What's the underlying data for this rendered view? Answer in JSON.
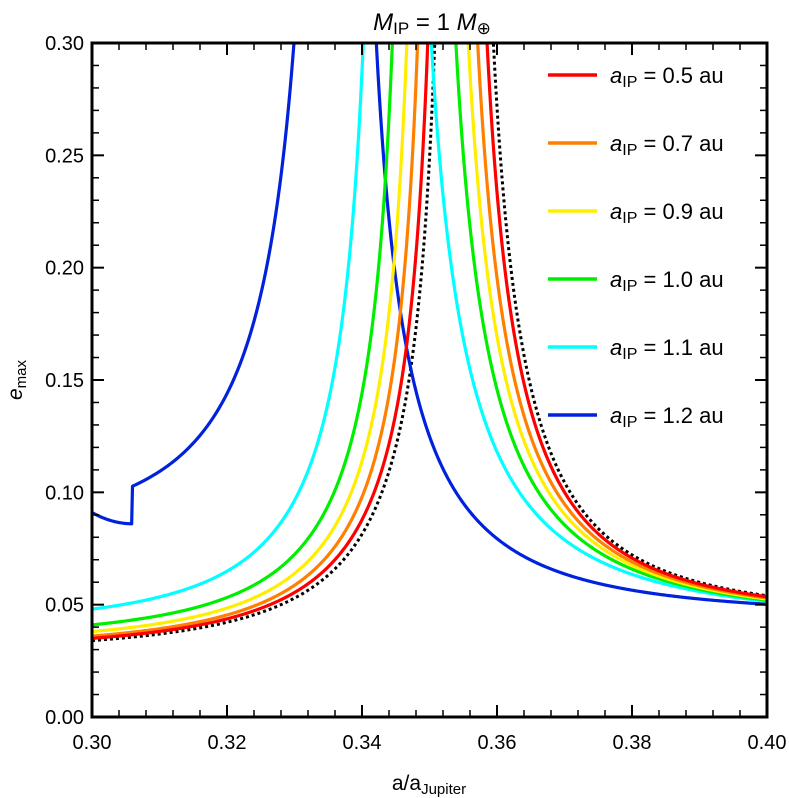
{
  "chart_data": {
    "type": "line",
    "title": {
      "M": "M",
      "sub": "IP",
      "eq": " = 1 ",
      "M2": "M",
      "sub2": "⊕"
    },
    "xlabel": {
      "main": "a/a",
      "sub": "Jupiter"
    },
    "ylabel": {
      "main": "e",
      "sub": "max"
    },
    "xlim": [
      0.3,
      0.4
    ],
    "ylim": [
      0.0,
      0.3
    ],
    "xticks": [
      "0.30",
      "0.32",
      "0.34",
      "0.36",
      "0.38",
      "0.40"
    ],
    "yticks": [
      "0.00",
      "0.05",
      "0.10",
      "0.15",
      "0.20",
      "0.25",
      "0.30"
    ],
    "legend_position": "top-right",
    "series": [
      {
        "name": {
          "a": "a",
          "sub": "IP",
          "rest": " = 0.5 au"
        },
        "color": "#ff0000",
        "line_style": "solid",
        "resonance_peak_x": 0.3535,
        "base_value_at_x_min": 0.035,
        "end_value": 0.0535,
        "has_legend": true
      },
      {
        "name": {
          "a": "a",
          "sub": "IP",
          "rest": " = 0.7 au"
        },
        "color": "#ff8000",
        "line_style": "solid",
        "resonance_peak_x": 0.352,
        "base_value_at_x_min": 0.036,
        "end_value": 0.053,
        "has_legend": true
      },
      {
        "name": {
          "a": "a",
          "sub": "IP",
          "rest": " = 0.9 au"
        },
        "color": "#ffee00",
        "line_style": "solid",
        "resonance_peak_x": 0.3505,
        "base_value_at_x_min": 0.038,
        "end_value": 0.0525,
        "has_legend": true
      },
      {
        "name": {
          "a": "a",
          "sub": "IP",
          "rest": " = 1.0 au"
        },
        "color": "#00ee00",
        "line_style": "solid",
        "resonance_peak_x": 0.3485,
        "base_value_at_x_min": 0.041,
        "end_value": 0.052,
        "has_legend": true
      },
      {
        "name": {
          "a": "a",
          "sub": "IP",
          "rest": " = 1.1 au"
        },
        "color": "#00ffff",
        "line_style": "solid",
        "resonance_peak_x": 0.3445,
        "base_value_at_x_min": 0.048,
        "end_value": 0.0515,
        "has_legend": true
      },
      {
        "name": {
          "a": "a",
          "sub": "IP",
          "rest": " = 1.2 au"
        },
        "color": "#0022dd",
        "line_style": "solid",
        "resonance_peak_x": 0.337,
        "base_value_at_x_min": 0.091,
        "min_value": 0.086,
        "end_value": 0.051,
        "has_legend": true
      },
      {
        "name": null,
        "color": "#000000",
        "line_style": "dotted",
        "resonance_peak_x": 0.3545,
        "base_value_at_x_min": 0.034,
        "end_value": 0.054,
        "has_legend": false
      }
    ]
  }
}
